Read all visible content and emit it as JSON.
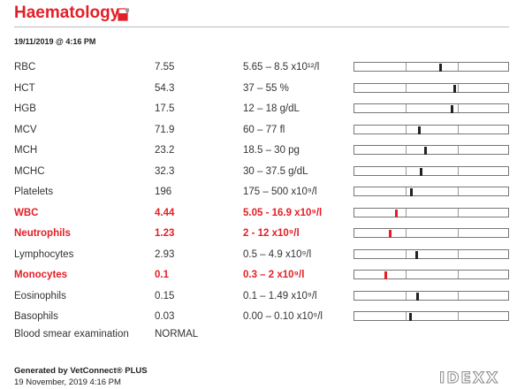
{
  "report": {
    "title": "Haematology",
    "datetime": "19/11/2019 @ 4:16 PM"
  },
  "results": [
    {
      "name": "RBC",
      "value": "7.55",
      "range": "5.65 – 8.5 x10¹²/l",
      "marker_fraction": 0.56,
      "abnormal": false
    },
    {
      "name": "HCT",
      "value": "54.3",
      "range": "37 – 55 %",
      "marker_fraction": 0.65,
      "abnormal": false
    },
    {
      "name": "HGB",
      "value": "17.5",
      "range": "12 – 18 g/dL",
      "marker_fraction": 0.63,
      "abnormal": false
    },
    {
      "name": "MCV",
      "value": "71.9",
      "range": "60 – 77 fl",
      "marker_fraction": 0.42,
      "abnormal": false
    },
    {
      "name": "MCH",
      "value": "23.2",
      "range": "18.5 – 30 pg",
      "marker_fraction": 0.46,
      "abnormal": false
    },
    {
      "name": "MCHC",
      "value": "32.3",
      "range": "30 – 37.5 g/dL",
      "marker_fraction": 0.43,
      "abnormal": false
    },
    {
      "name": "Platelets",
      "value": "196",
      "range": "175 – 500 x10⁹/l",
      "marker_fraction": 0.37,
      "abnormal": false
    },
    {
      "name": "WBC",
      "value": "4.44",
      "range": "5.05 - 16.9 x10⁹/l",
      "marker_fraction": 0.27,
      "abnormal": true
    },
    {
      "name": "Neutrophils",
      "value": "1.23",
      "range": "2 - 12 x10⁹/l",
      "marker_fraction": 0.23,
      "abnormal": true
    },
    {
      "name": "Lymphocytes",
      "value": "2.93",
      "range": "0.5 – 4.9 x10⁹/l",
      "marker_fraction": 0.4,
      "abnormal": false
    },
    {
      "name": "Monocytes",
      "value": "0.1",
      "range": "0.3 – 2 x10⁹/l",
      "marker_fraction": 0.2,
      "abnormal": true
    },
    {
      "name": "Eosinophils",
      "value": "0.15",
      "range": "0.1 – 1.49 x10⁹/l",
      "marker_fraction": 0.41,
      "abnormal": false
    },
    {
      "name": "Basophils",
      "value": "0.03",
      "range": "0.00 – 0.10 x10⁹/l",
      "marker_fraction": 0.36,
      "abnormal": false
    }
  ],
  "smear": {
    "name": "Blood smear examination",
    "value": "NORMAL"
  },
  "footer": {
    "generated_by": "Generated by VetConnect® PLUS",
    "generated_date": "19 November, 2019  4:16 PM",
    "logo": "IDEXX"
  },
  "colors": {
    "accent_red": "#e41e26",
    "marker_normal": "#222222"
  }
}
